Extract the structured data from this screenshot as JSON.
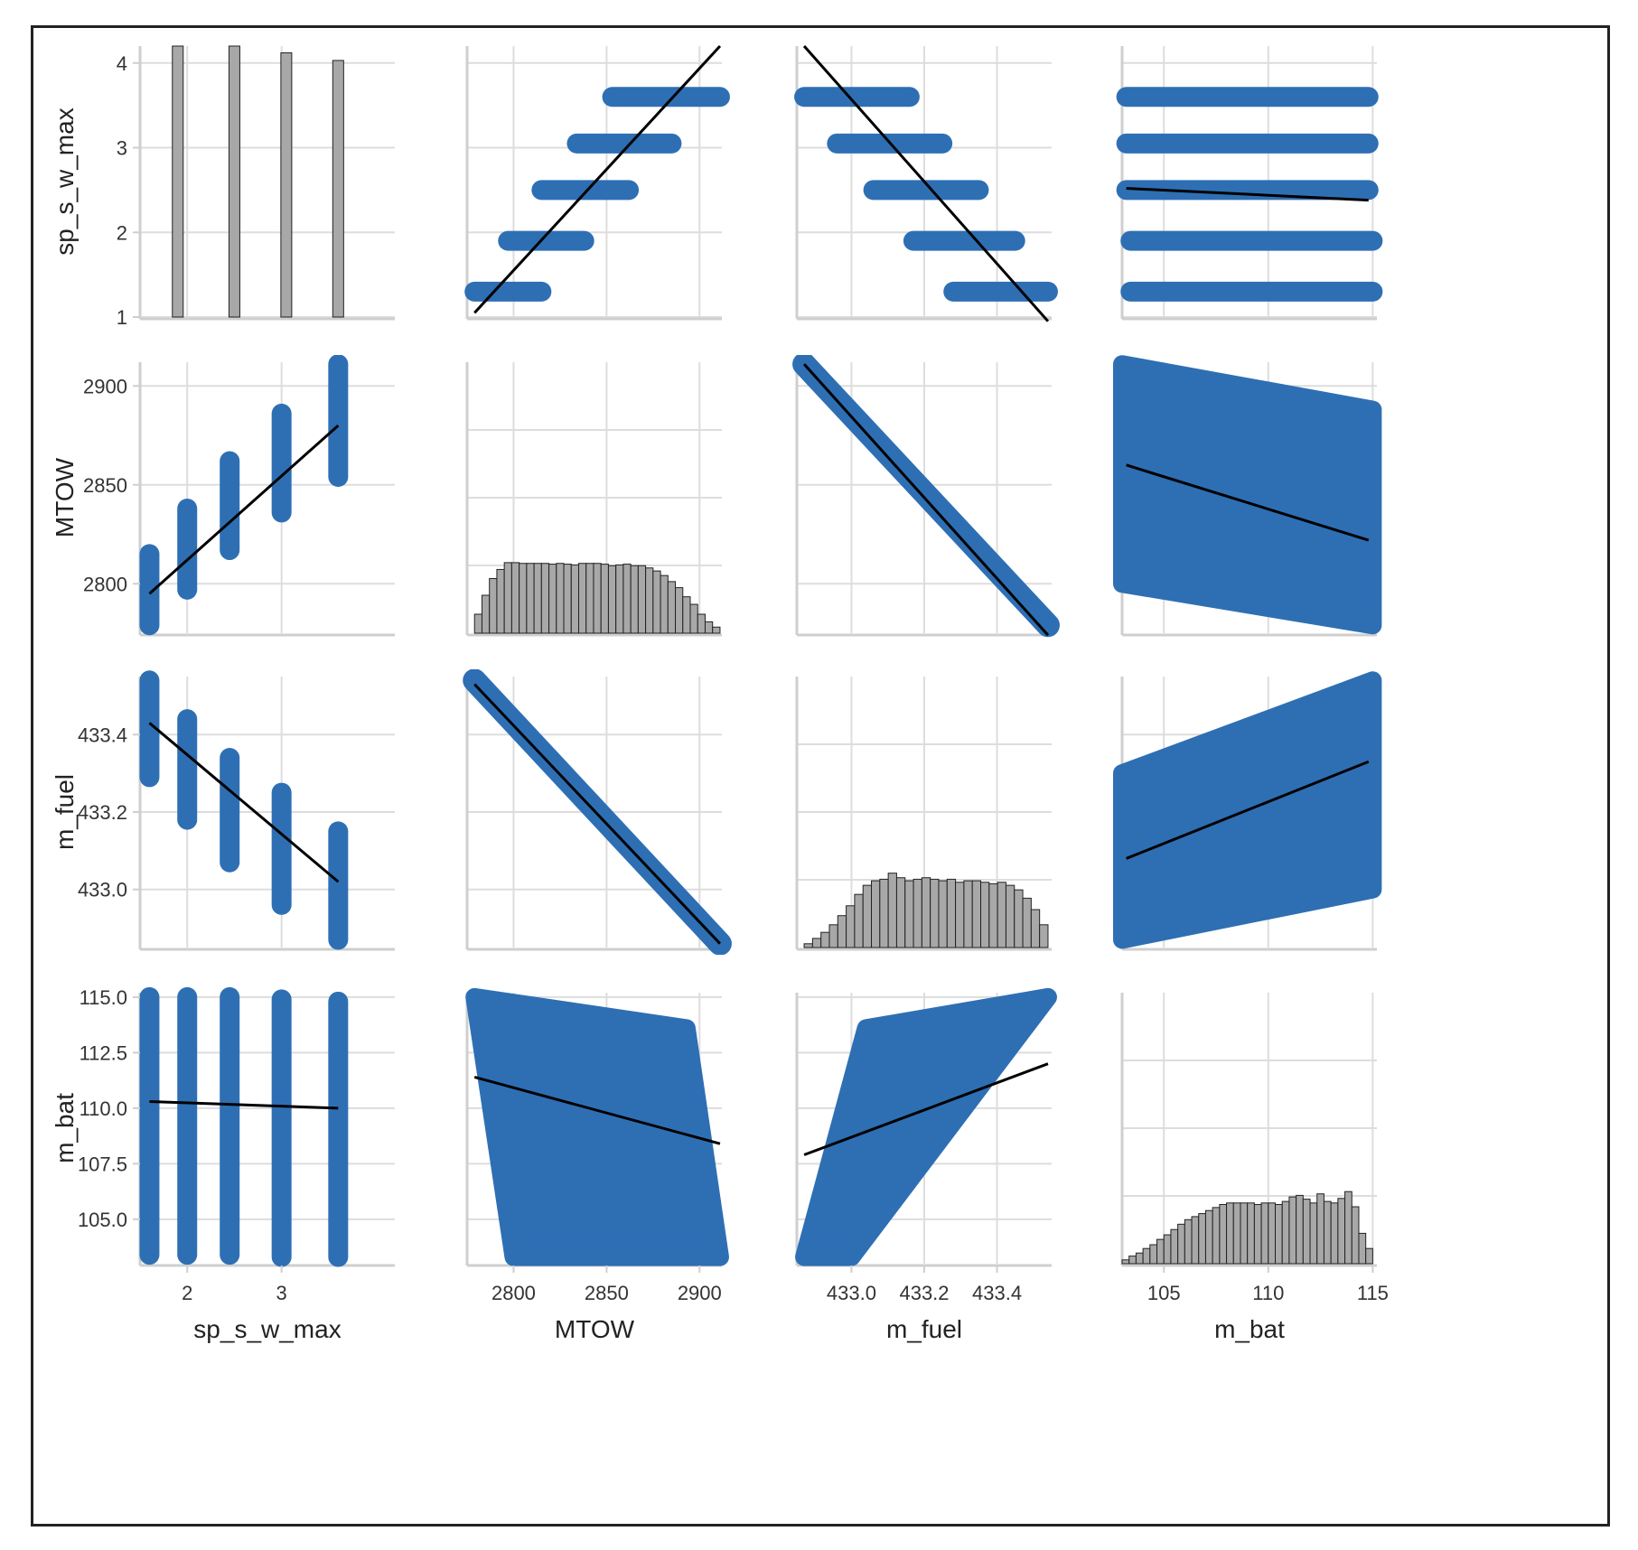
{
  "figure": {
    "frame_border_color": "#222222",
    "point_color": "#2e6fb4",
    "hist_color": "#a8a8a8",
    "regression_color": "#000000",
    "variables": [
      "sp_s_w_max",
      "MTOW",
      "m_fuel",
      "m_bat"
    ]
  },
  "chart_data": {
    "type": "scatter",
    "subtype": "pairplot",
    "grid": true,
    "variables": [
      {
        "name": "sp_s_w_max",
        "label": "sp_s_w_max",
        "range": [
          1.0,
          4.2
        ],
        "ticks": [
          1,
          2,
          3,
          4
        ],
        "tick_labels": [
          "1",
          "2",
          "3",
          "4"
        ],
        "x_ticks": [
          2,
          3
        ],
        "x_tick_labels": [
          "2",
          "3"
        ],
        "x_range": [
          1.5,
          4.2
        ],
        "discrete_values": [
          1.3,
          1.9,
          2.5,
          3.05,
          3.6
        ]
      },
      {
        "name": "MTOW",
        "label": "MTOW",
        "range": [
          2775,
          2912
        ],
        "ticks": [
          2800,
          2850,
          2900
        ],
        "tick_labels": [
          "2800",
          "2850",
          "2900"
        ]
      },
      {
        "name": "m_fuel",
        "label": "m_fuel",
        "range": [
          432.85,
          433.55
        ],
        "ticks": [
          433.0,
          433.2,
          433.4
        ],
        "tick_labels": [
          "433.0",
          "433.2",
          "433.4"
        ]
      },
      {
        "name": "m_bat",
        "label": "m_bat",
        "range": [
          103.0,
          115.2
        ],
        "ticks": [
          105.0,
          107.5,
          110.0,
          112.5,
          115.0
        ],
        "tick_labels": [
          "105.0",
          "107.5",
          "110.0",
          "112.5",
          "115.0"
        ],
        "x_ticks": [
          105,
          110,
          115
        ],
        "x_tick_labels": [
          "105",
          "110",
          "115"
        ]
      }
    ],
    "diagonal_histograms": [
      {
        "variable": "sp_s_w_max",
        "bins": [
          1.3,
          1.9,
          2.5,
          3.05,
          3.6
        ],
        "heights": [
          4.2,
          4.2,
          4.2,
          4.12,
          4.03
        ]
      },
      {
        "variable": "MTOW",
        "bin_edges": [
          2779,
          2911
        ],
        "heights": [
          0.25,
          0.5,
          0.72,
          0.84,
          0.93,
          0.93,
          0.92,
          0.92,
          0.92,
          0.92,
          0.91,
          0.92,
          0.91,
          0.9,
          0.92,
          0.92,
          0.92,
          0.91,
          0.89,
          0.9,
          0.91,
          0.89,
          0.89,
          0.86,
          0.82,
          0.76,
          0.68,
          0.6,
          0.48,
          0.38,
          0.25,
          0.15,
          0.08
        ]
      },
      {
        "variable": "m_fuel",
        "bin_edges": [
          432.87,
          433.54
        ],
        "heights": [
          0.05,
          0.12,
          0.2,
          0.3,
          0.42,
          0.55,
          0.7,
          0.82,
          0.88,
          0.9,
          0.98,
          0.92,
          0.88,
          0.9,
          0.92,
          0.9,
          0.88,
          0.9,
          0.86,
          0.88,
          0.88,
          0.86,
          0.84,
          0.86,
          0.82,
          0.76,
          0.65,
          0.5,
          0.3
        ]
      },
      {
        "variable": "m_bat",
        "bin_edges": [
          103.0,
          115.0
        ],
        "heights": [
          0.05,
          0.1,
          0.14,
          0.2,
          0.25,
          0.32,
          0.38,
          0.45,
          0.52,
          0.58,
          0.62,
          0.66,
          0.7,
          0.74,
          0.78,
          0.8,
          0.8,
          0.8,
          0.8,
          0.78,
          0.8,
          0.8,
          0.78,
          0.82,
          0.88,
          0.9,
          0.85,
          0.8,
          0.92,
          0.82,
          0.8,
          0.86,
          0.95,
          0.75,
          0.4,
          0.2
        ]
      }
    ],
    "discrete_bands": [
      {
        "x": "MTOW",
        "y": "sp_s_w_max",
        "bands": [
          {
            "y": 1.3,
            "x": [
              2779,
              2815
            ]
          },
          {
            "y": 1.9,
            "x": [
              2797,
              2838
            ]
          },
          {
            "y": 2.5,
            "x": [
              2815,
              2862
            ]
          },
          {
            "y": 3.05,
            "x": [
              2834,
              2885
            ]
          },
          {
            "y": 3.6,
            "x": [
              2853,
              2911
            ]
          }
        ],
        "fit": {
          "x": [
            2779,
            2911
          ],
          "y": [
            1.05,
            4.2
          ]
        }
      },
      {
        "x": "m_fuel",
        "y": "sp_s_w_max",
        "bands": [
          {
            "y": 3.6,
            "x": [
              432.87,
              433.16
            ]
          },
          {
            "y": 3.05,
            "x": [
              432.96,
              433.25
            ]
          },
          {
            "y": 2.5,
            "x": [
              433.06,
              433.35
            ]
          },
          {
            "y": 1.9,
            "x": [
              433.17,
              433.45
            ]
          },
          {
            "y": 1.3,
            "x": [
              433.28,
              433.54
            ]
          }
        ],
        "fit": {
          "x": [
            432.87,
            433.54
          ],
          "y": [
            4.2,
            0.95
          ]
        }
      },
      {
        "x": "m_bat",
        "y": "sp_s_w_max",
        "bands": [
          {
            "y": 3.6,
            "x": [
              103.2,
              114.8
            ]
          },
          {
            "y": 3.05,
            "x": [
              103.2,
              114.8
            ]
          },
          {
            "y": 2.5,
            "x": [
              103.2,
              114.8
            ]
          },
          {
            "y": 1.9,
            "x": [
              103.4,
              115.0
            ]
          },
          {
            "y": 1.3,
            "x": [
              103.4,
              115.0
            ]
          }
        ],
        "fit": {
          "x": [
            103.2,
            114.8
          ],
          "y": [
            2.52,
            2.38
          ]
        }
      },
      {
        "x": "sp_s_w_max",
        "y": "MTOW",
        "bands": [
          {
            "x": 1.6,
            "y": [
              2779,
              2815
            ]
          },
          {
            "x": 2.0,
            "y": [
              2797,
              2838
            ]
          },
          {
            "x": 2.45,
            "y": [
              2817,
              2862
            ]
          },
          {
            "x": 3.0,
            "y": [
              2836,
              2886
            ]
          },
          {
            "x": 3.6,
            "y": [
              2854,
              2911
            ]
          }
        ],
        "fit": {
          "x": [
            1.6,
            3.6
          ],
          "y": [
            2795,
            2880
          ]
        }
      },
      {
        "x": "sp_s_w_max",
        "y": "m_fuel",
        "bands": [
          {
            "x": 1.6,
            "y": [
              433.29,
              433.54
            ]
          },
          {
            "x": 2.0,
            "y": [
              433.18,
              433.44
            ]
          },
          {
            "x": 2.45,
            "y": [
              433.07,
              433.34
            ]
          },
          {
            "x": 3.0,
            "y": [
              432.96,
              433.25
            ]
          },
          {
            "x": 3.6,
            "y": [
              432.87,
              433.15
            ]
          }
        ],
        "fit": {
          "x": [
            1.6,
            3.6
          ],
          "y": [
            433.43,
            433.02
          ]
        }
      },
      {
        "x": "sp_s_w_max",
        "y": "m_bat",
        "bands": [
          {
            "x": 1.6,
            "y": [
              103.4,
              115.0
            ]
          },
          {
            "x": 2.0,
            "y": [
              103.4,
              115.0
            ]
          },
          {
            "x": 2.45,
            "y": [
              103.4,
              115.0
            ]
          },
          {
            "x": 3.0,
            "y": [
              103.3,
              114.9
            ]
          },
          {
            "x": 3.6,
            "y": [
              103.3,
              114.8
            ]
          }
        ],
        "fit": {
          "x": [
            1.6,
            3.6
          ],
          "y": [
            110.3,
            110.0
          ]
        }
      }
    ],
    "dense_scatter": [
      {
        "x": "m_fuel",
        "y": "MTOW",
        "polygon": [
          [
            432.87,
            2911
          ],
          [
            433.54,
            2779
          ]
        ],
        "fit": {
          "x": [
            432.87,
            433.54
          ],
          "y": [
            2911,
            2774
          ]
        }
      },
      {
        "x": "MTOW",
        "y": "m_fuel",
        "polygon": [
          [
            2779,
            433.54
          ],
          [
            2911,
            432.86
          ]
        ],
        "fit": {
          "x": [
            2779,
            2911
          ],
          "y": [
            433.53,
            432.86
          ]
        }
      },
      {
        "x": "m_bat",
        "y": "MTOW",
        "polygon": [
          [
            103.0,
            2911
          ],
          [
            115.0,
            2888
          ],
          [
            115.0,
            2779
          ],
          [
            103.0,
            2800
          ]
        ],
        "fit": {
          "x": [
            103.2,
            114.8
          ],
          "y": [
            2860,
            2822
          ]
        }
      },
      {
        "x": "m_bat",
        "y": "m_fuel",
        "polygon": [
          [
            103.0,
            432.87
          ],
          [
            115.0,
            433.0
          ],
          [
            115.0,
            433.54
          ],
          [
            103.0,
            433.3
          ]
        ],
        "fit": {
          "x": [
            103.2,
            114.8
          ],
          "y": [
            433.08,
            433.33
          ]
        }
      },
      {
        "x": "MTOW",
        "y": "m_bat",
        "polygon": [
          [
            2779,
            115.0
          ],
          [
            2893,
            113.6
          ],
          [
            2911,
            103.3
          ],
          [
            2800,
            103.3
          ]
        ],
        "fit": {
          "x": [
            2779,
            2911
          ],
          "y": [
            111.4,
            108.4
          ]
        }
      },
      {
        "x": "m_fuel",
        "y": "m_bat",
        "polygon": [
          [
            432.87,
            103.3
          ],
          [
            433.0,
            103.3
          ],
          [
            433.54,
            115.0
          ],
          [
            433.04,
            113.6
          ]
        ],
        "fit": {
          "x": [
            432.87,
            433.54
          ],
          "y": [
            107.9,
            112.0
          ]
        }
      }
    ]
  }
}
